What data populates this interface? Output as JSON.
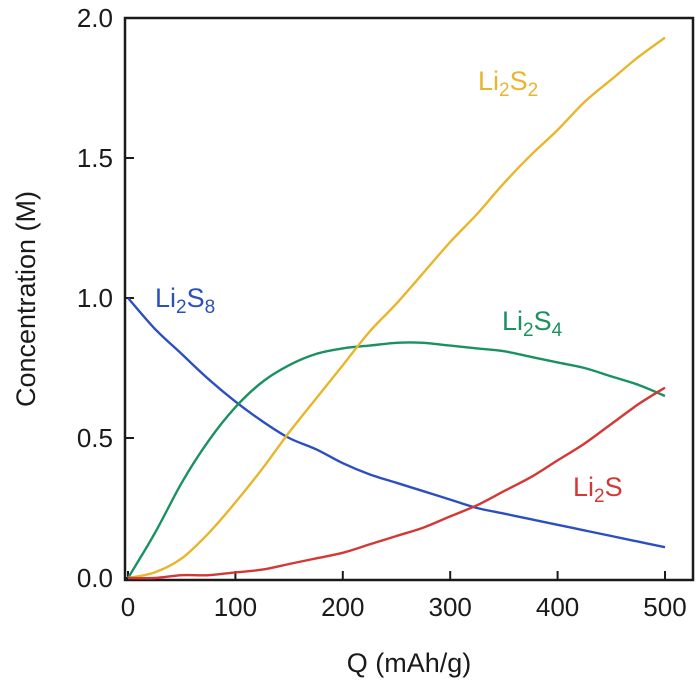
{
  "chart_data": {
    "type": "line",
    "title": "",
    "xlabel": "Q (mAh/g)",
    "ylabel": "Concentration (M)",
    "xlim": [
      0,
      520
    ],
    "ylim": [
      0,
      2.0
    ],
    "xticks": [
      0,
      100,
      200,
      300,
      400,
      500
    ],
    "yticks": [
      0.0,
      0.5,
      1.0,
      1.5,
      2.0
    ],
    "xtick_labels": [
      "0",
      "100",
      "200",
      "300",
      "400",
      "500"
    ],
    "ytick_labels": [
      "0.0",
      "0.5",
      "1.0",
      "1.5",
      "2.0"
    ],
    "grid": false,
    "legend": "none",
    "x": [
      0,
      25,
      50,
      75,
      100,
      125,
      150,
      175,
      200,
      225,
      250,
      275,
      300,
      325,
      350,
      375,
      400,
      425,
      450,
      475,
      500
    ],
    "series": [
      {
        "name": "Li2S8",
        "label_main": "Li",
        "label_sub1": "2",
        "label_mid": "S",
        "label_sub2": "8",
        "color": "#2b4fc1",
        "values": [
          1.0,
          0.89,
          0.8,
          0.71,
          0.63,
          0.56,
          0.5,
          0.46,
          0.41,
          0.37,
          0.34,
          0.31,
          0.28,
          0.25,
          0.23,
          0.21,
          0.19,
          0.17,
          0.15,
          0.13,
          0.11
        ]
      },
      {
        "name": "Li2S4",
        "label_main": "Li",
        "label_sub1": "2",
        "label_mid": "S",
        "label_sub2": "4",
        "color": "#1a9160",
        "values": [
          0.0,
          0.16,
          0.34,
          0.49,
          0.61,
          0.7,
          0.76,
          0.8,
          0.82,
          0.83,
          0.84,
          0.84,
          0.83,
          0.82,
          0.81,
          0.79,
          0.77,
          0.75,
          0.72,
          0.69,
          0.65
        ]
      },
      {
        "name": "Li2S2",
        "label_main": "Li",
        "label_sub1": "2",
        "label_mid": "S",
        "label_sub2": "2",
        "color": "#e9b52c",
        "values": [
          0.0,
          0.02,
          0.07,
          0.16,
          0.27,
          0.39,
          0.52,
          0.64,
          0.76,
          0.88,
          0.98,
          1.09,
          1.2,
          1.3,
          1.41,
          1.51,
          1.6,
          1.7,
          1.78,
          1.86,
          1.93
        ]
      },
      {
        "name": "Li2S",
        "label_main": "Li",
        "label_sub1": "2",
        "label_mid": "S",
        "label_sub2": "",
        "color": "#d43834",
        "values": [
          0.0,
          0.0,
          0.01,
          0.01,
          0.02,
          0.03,
          0.05,
          0.07,
          0.09,
          0.12,
          0.15,
          0.18,
          0.22,
          0.26,
          0.31,
          0.36,
          0.42,
          0.48,
          0.55,
          0.62,
          0.68
        ]
      }
    ]
  }
}
